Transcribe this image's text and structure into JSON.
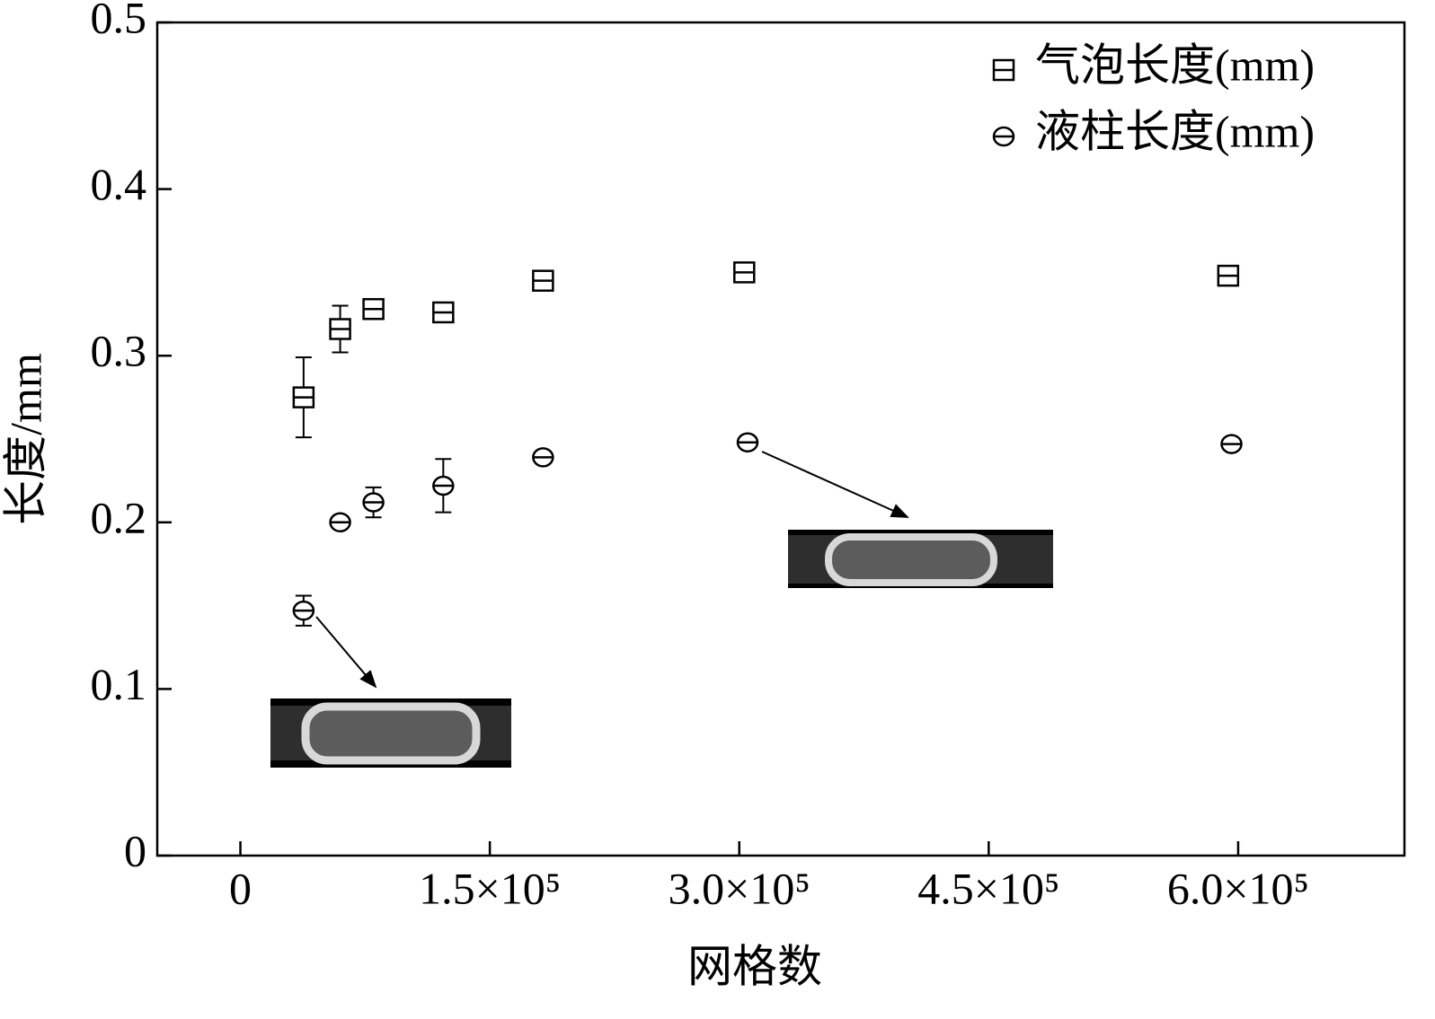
{
  "chart_data": {
    "type": "scatter",
    "xlabel": "网格数",
    "ylabel": "长度/mm",
    "xlim": [
      -50000,
      700000
    ],
    "xticks": [
      0,
      {
        "value": 150000,
        "label": "1.5×10⁵"
      },
      {
        "value": 300000,
        "label": "3.0×10⁵"
      },
      {
        "value": 450000,
        "label": "4.5×10⁵"
      },
      {
        "value": 600000,
        "label": "6.0×10⁵"
      }
    ],
    "ylim": [
      0,
      0.5
    ],
    "yticks": [
      0,
      0.1,
      0.2,
      0.3,
      0.4,
      0.5
    ],
    "legend": "upper right",
    "series": [
      {
        "name": "气泡长度(mm)",
        "marker": "square",
        "color": "#000000",
        "x": [
          38000,
          60000,
          80000,
          122000,
          182000,
          303000,
          594000
        ],
        "values": [
          0.275,
          0.316,
          0.328,
          0.326,
          0.345,
          0.35,
          0.348
        ],
        "errors": [
          0.024,
          0.014,
          null,
          null,
          null,
          null,
          null
        ]
      },
      {
        "name": "液柱长度(mm)",
        "marker": "circle",
        "color": "#000000",
        "x": [
          38000,
          60000,
          80000,
          122000,
          182000,
          305000,
          596000
        ],
        "values": [
          0.147,
          0.2,
          0.212,
          0.222,
          0.239,
          0.248,
          0.247
        ],
        "errors": [
          0.009,
          null,
          0.009,
          0.016,
          null,
          null,
          null
        ]
      }
    ]
  }
}
